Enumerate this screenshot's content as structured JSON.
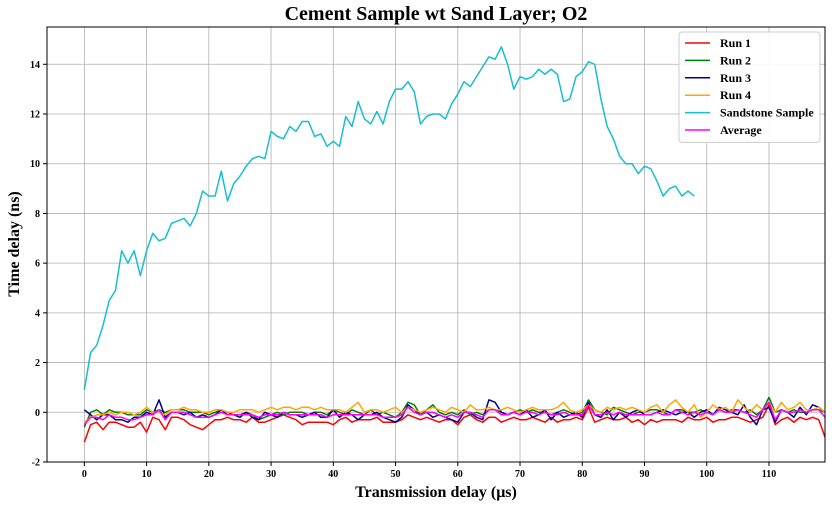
{
  "chart_data": {
    "type": "line",
    "title": "Cement Sample wt Sand Layer; O2",
    "xlabel": "Transmission delay (μs)",
    "ylabel": "Time delay (ns)",
    "xlim": [
      -6,
      119
    ],
    "ylim": [
      -2,
      15.5
    ],
    "xticks": [
      0,
      10,
      20,
      30,
      40,
      50,
      60,
      70,
      80,
      90,
      100,
      110
    ],
    "yticks": [
      -2,
      0,
      2,
      4,
      6,
      8,
      10,
      12,
      14
    ],
    "grid": true,
    "legend_position": "top-right",
    "series": [
      {
        "name": "Run 1",
        "color": "#ff0000",
        "x_start": 0,
        "x_step": 1,
        "values": [
          -1.2,
          -0.5,
          -0.4,
          -0.7,
          -0.4,
          -0.4,
          -0.5,
          -0.6,
          -0.6,
          -0.4,
          -0.8,
          -0.2,
          -0.3,
          -0.7,
          -0.2,
          -0.2,
          -0.3,
          -0.5,
          -0.6,
          -0.7,
          -0.5,
          -0.3,
          -0.3,
          -0.2,
          -0.3,
          -0.3,
          -0.4,
          -0.2,
          -0.4,
          -0.4,
          -0.3,
          -0.2,
          -0.1,
          -0.2,
          -0.3,
          -0.5,
          -0.4,
          -0.4,
          -0.4,
          -0.4,
          -0.5,
          -0.3,
          -0.2,
          -0.4,
          -0.3,
          -0.3,
          -0.3,
          -0.2,
          -0.4,
          -0.4,
          -0.4,
          -0.3,
          -0.1,
          -0.2,
          -0.3,
          -0.2,
          -0.3,
          -0.4,
          -0.3,
          -0.3,
          -0.5,
          -0.2,
          -0.1,
          -0.3,
          -0.4,
          -0.2,
          -0.2,
          -0.4,
          -0.3,
          -0.2,
          -0.3,
          -0.3,
          -0.2,
          -0.3,
          -0.4,
          -0.2,
          -0.4,
          -0.3,
          -0.3,
          -0.2,
          -0.3,
          0.2,
          -0.4,
          -0.3,
          -0.2,
          -0.3,
          -0.3,
          -0.2,
          -0.4,
          -0.3,
          -0.5,
          -0.3,
          -0.4,
          -0.3,
          -0.3,
          -0.3,
          -0.4,
          -0.2,
          -0.3,
          -0.3,
          -0.2,
          -0.4,
          -0.3,
          -0.3,
          -0.2,
          -0.2,
          -0.3,
          -0.4,
          -0.3,
          -0.2,
          0.3,
          -0.5,
          -0.3,
          -0.2,
          -0.4,
          -0.2,
          -0.3,
          -0.2,
          -0.3,
          -1.0
        ]
      },
      {
        "name": "Run 2",
        "color": "#008000",
        "x_start": 0,
        "x_step": 1,
        "values": [
          -0.6,
          0.0,
          0.1,
          -0.1,
          0.1,
          0.0,
          0.0,
          -0.1,
          -0.1,
          -0.1,
          0.1,
          0.0,
          0.1,
          0.0,
          0.1,
          0.1,
          0.1,
          0.0,
          0.0,
          0.0,
          -0.1,
          0.0,
          0.1,
          0.0,
          -0.1,
          -0.1,
          0.0,
          -0.1,
          -0.3,
          -0.2,
          -0.1,
          0.0,
          -0.1,
          0.0,
          0.0,
          0.0,
          -0.1,
          0.0,
          0.0,
          -0.1,
          0.1,
          0.0,
          -0.1,
          0.1,
          0.0,
          -0.1,
          0.1,
          -0.1,
          0.0,
          -0.1,
          -0.2,
          0.0,
          0.4,
          0.3,
          -0.1,
          0.1,
          0.3,
          0.0,
          -0.1,
          0.0,
          -0.1,
          0.1,
          -0.1,
          0.0,
          -0.1,
          0.1,
          0.1,
          0.0,
          -0.1,
          0.0,
          0.1,
          0.0,
          0.1,
          0.0,
          0.0,
          -0.1,
          0.0,
          0.1,
          0.0,
          -0.1,
          0.0,
          0.5,
          0.1,
          0.0,
          -0.1,
          0.2,
          0.1,
          0.0,
          -0.1,
          0.0,
          0.0,
          0.1,
          0.1,
          0.0,
          -0.1,
          0.1,
          0.1,
          0.0,
          0.0,
          0.1,
          0.0,
          -0.1,
          0.1,
          0.0,
          0.1,
          0.1,
          0.0,
          0.1,
          -0.1,
          0.1,
          0.6,
          0.0,
          0.1,
          0.0,
          0.1,
          0.0,
          0.0,
          0.1,
          0.1,
          0.0
        ]
      },
      {
        "name": "Run 3",
        "color": "#00008b",
        "x_start": 0,
        "x_step": 1,
        "values": [
          0.1,
          -0.1,
          -0.3,
          -0.1,
          -0.1,
          -0.3,
          -0.3,
          -0.4,
          -0.2,
          -0.2,
          0.0,
          -0.1,
          0.5,
          -0.2,
          0.0,
          0.0,
          -0.1,
          0.0,
          -0.2,
          -0.1,
          -0.2,
          -0.1,
          0.1,
          -0.1,
          -0.1,
          -0.2,
          0.0,
          -0.2,
          -0.3,
          0.0,
          -0.1,
          -0.2,
          0.0,
          -0.1,
          -0.1,
          -0.2,
          -0.1,
          0.0,
          -0.2,
          -0.2,
          0.1,
          -0.2,
          0.0,
          -0.1,
          -0.3,
          -0.1,
          -0.1,
          0.0,
          -0.2,
          -0.3,
          -0.4,
          -0.2,
          0.3,
          0.1,
          -0.1,
          0.0,
          -0.2,
          -0.1,
          -0.2,
          -0.3,
          -0.4,
          0.0,
          0.0,
          -0.2,
          -0.3,
          0.5,
          0.4,
          0.0,
          -0.1,
          0.0,
          -0.1,
          0.1,
          -0.2,
          -0.1,
          0.1,
          -0.3,
          0.0,
          -0.2,
          -0.1,
          0.0,
          -0.2,
          0.4,
          -0.1,
          -0.2,
          0.1,
          -0.3,
          0.0,
          -0.2,
          0.0,
          0.1,
          -0.1,
          -0.1,
          0.0,
          0.1,
          0.0,
          -0.1,
          0.0,
          0.0,
          -0.2,
          0.0,
          0.1,
          -0.1,
          0.2,
          0.1,
          0.0,
          -0.1,
          0.3,
          -0.2,
          -0.5,
          0.1,
          0.2,
          -0.4,
          0.1,
          0.0,
          -0.2,
          0.2,
          -0.1,
          0.3,
          0.2,
          0.0
        ]
      },
      {
        "name": "Run 4",
        "color": "#ffa500",
        "x_start": 0,
        "x_step": 1,
        "values": [
          -0.4,
          -0.2,
          -0.1,
          -0.1,
          0.0,
          -0.1,
          0.0,
          0.0,
          -0.1,
          0.0,
          0.2,
          0.0,
          0.0,
          -0.1,
          0.1,
          0.1,
          0.2,
          0.1,
          0.1,
          0.0,
          0.0,
          0.1,
          0.1,
          0.0,
          0.0,
          0.1,
          0.1,
          0.1,
          0.0,
          0.1,
          0.2,
          0.1,
          0.2,
          0.2,
          0.1,
          0.2,
          0.2,
          0.1,
          0.2,
          0.1,
          0.1,
          0.1,
          0.0,
          0.2,
          0.4,
          0.0,
          0.1,
          0.1,
          0.0,
          0.1,
          0.2,
          0.0,
          0.2,
          0.1,
          0.0,
          0.1,
          0.2,
          0.1,
          0.0,
          0.2,
          0.1,
          0.0,
          0.3,
          0.1,
          0.1,
          0.2,
          0.1,
          0.1,
          0.2,
          0.1,
          0.0,
          0.1,
          0.2,
          0.1,
          0.1,
          0.1,
          0.2,
          0.4,
          0.1,
          0.0,
          0.1,
          0.3,
          0.1,
          0.0,
          0.2,
          0.1,
          0.2,
          0.1,
          0.2,
          0.1,
          0.0,
          0.2,
          0.3,
          0.0,
          0.3,
          0.5,
          0.2,
          0.0,
          0.3,
          -0.2,
          0.0,
          0.3,
          0.1,
          0.2,
          0.0,
          0.5,
          0.2,
          0.0,
          0.3,
          0.1,
          0.4,
          0.0,
          0.4,
          0.1,
          0.2,
          0.4,
          0.1,
          0.1,
          0.2,
          0.0
        ]
      },
      {
        "name": "Sandstone Sample",
        "color": "#17becf",
        "x_start": 0,
        "x_step": 1,
        "values": [
          0.9,
          2.4,
          2.7,
          3.5,
          4.5,
          4.9,
          6.5,
          6.0,
          6.5,
          5.5,
          6.5,
          7.2,
          6.9,
          7.0,
          7.6,
          7.7,
          7.8,
          7.5,
          8.0,
          8.9,
          8.7,
          8.7,
          9.7,
          8.5,
          9.2,
          9.5,
          9.9,
          10.2,
          10.3,
          10.2,
          11.3,
          11.1,
          11.0,
          11.5,
          11.3,
          11.7,
          11.7,
          11.1,
          11.2,
          10.7,
          10.9,
          10.7,
          11.9,
          11.5,
          12.5,
          11.8,
          11.6,
          12.1,
          11.6,
          12.5,
          13.0,
          13.0,
          13.3,
          12.9,
          11.6,
          11.9,
          12.0,
          12.0,
          11.8,
          12.4,
          12.8,
          13.3,
          13.1,
          13.5,
          13.9,
          14.3,
          14.2,
          14.7,
          14.0,
          13.0,
          13.5,
          13.4,
          13.5,
          13.8,
          13.6,
          13.8,
          13.6,
          12.5,
          12.6,
          13.5,
          13.7,
          14.1,
          14.0,
          12.6,
          11.5,
          11.0,
          10.3,
          10.0,
          10.0,
          9.6,
          9.9,
          9.8,
          9.3,
          8.7,
          9.0,
          9.1,
          8.7,
          8.9,
          8.7
        ]
      },
      {
        "name": "Average",
        "color": "#ff00ff",
        "x_start": 0,
        "x_step": 1,
        "values": [
          -0.5,
          -0.2,
          -0.2,
          -0.3,
          -0.1,
          -0.2,
          -0.2,
          -0.3,
          -0.3,
          -0.2,
          -0.1,
          -0.1,
          0.1,
          -0.3,
          0.0,
          0.0,
          0.0,
          -0.1,
          -0.2,
          -0.2,
          -0.2,
          -0.1,
          0.0,
          -0.1,
          -0.1,
          -0.1,
          -0.1,
          -0.1,
          -0.2,
          -0.1,
          -0.1,
          -0.1,
          0.0,
          -0.1,
          -0.1,
          -0.1,
          -0.1,
          -0.1,
          -0.1,
          -0.2,
          -0.1,
          -0.1,
          -0.1,
          -0.1,
          -0.1,
          -0.1,
          -0.1,
          -0.1,
          -0.2,
          -0.2,
          -0.2,
          -0.1,
          0.2,
          0.0,
          -0.1,
          0.0,
          0.0,
          -0.1,
          -0.2,
          -0.1,
          -0.2,
          0.0,
          0.0,
          -0.1,
          -0.2,
          0.1,
          0.1,
          -0.1,
          -0.1,
          0.0,
          -0.1,
          0.0,
          0.0,
          -0.1,
          0.0,
          -0.1,
          -0.1,
          0.0,
          -0.1,
          -0.1,
          -0.1,
          0.3,
          -0.1,
          -0.1,
          0.0,
          -0.1,
          0.0,
          -0.1,
          -0.1,
          -0.1,
          -0.1,
          -0.1,
          0.0,
          -0.1,
          -0.1,
          0.1,
          0.0,
          -0.1,
          0.0,
          -0.1,
          0.0,
          -0.1,
          0.1,
          0.0,
          0.0,
          0.1,
          0.0,
          -0.1,
          -0.2,
          0.1,
          0.4,
          -0.3,
          0.1,
          0.0,
          0.0,
          0.1,
          0.0,
          0.1,
          0.1,
          -0.2
        ]
      }
    ]
  }
}
